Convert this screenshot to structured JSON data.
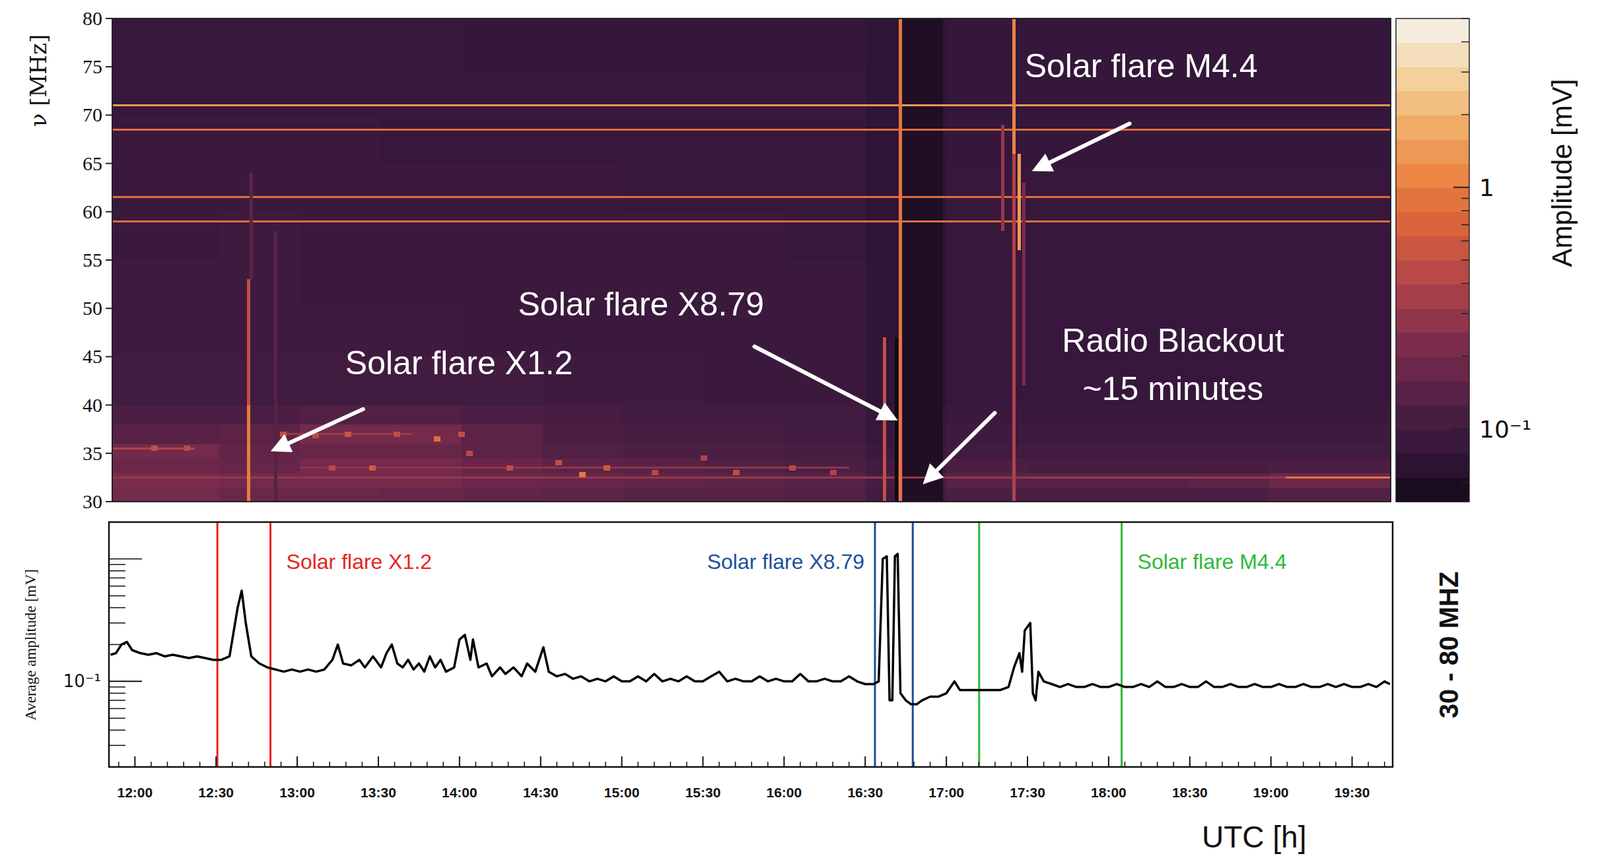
{
  "chart_data": [
    {
      "type": "heatmap",
      "y_label": "ν [MHz]",
      "xlim": [
        11.84,
        19.75
      ],
      "ylim": [
        30,
        80
      ],
      "yticks": [
        30,
        35,
        40,
        45,
        50,
        55,
        60,
        65,
        70,
        75,
        80
      ],
      "tick_labels": "y",
      "time_edges": [
        11.84,
        12.5,
        13,
        13.5,
        14,
        14.5,
        15,
        15.5,
        16,
        16.5,
        17,
        17.5,
        18,
        18.5,
        19,
        19.75
      ],
      "freq_edges": [
        30,
        31.5,
        33,
        34.5,
        36,
        38,
        40,
        45,
        50,
        55,
        60,
        65,
        70,
        75,
        80
      ],
      "cells": [
        [
          0.2,
          0.18,
          0.18,
          0.17,
          0.16,
          0.15,
          0.14,
          0.14,
          0.13,
          0.1,
          0.12,
          0.12,
          0.12,
          0.12,
          0.13
        ],
        [
          0.22,
          0.2,
          0.2,
          0.2,
          0.18,
          0.17,
          0.16,
          0.15,
          0.14,
          0.11,
          0.14,
          0.14,
          0.14,
          0.15,
          0.18
        ],
        [
          0.18,
          0.17,
          0.2,
          0.2,
          0.17,
          0.15,
          0.14,
          0.13,
          0.12,
          0.1,
          0.12,
          0.11,
          0.11,
          0.11,
          0.12
        ],
        [
          0.2,
          0.16,
          0.17,
          0.17,
          0.15,
          0.13,
          0.12,
          0.12,
          0.11,
          0.09,
          0.1,
          0.1,
          0.1,
          0.1,
          0.1
        ],
        [
          0.14,
          0.15,
          0.2,
          0.2,
          0.15,
          0.12,
          0.11,
          0.11,
          0.1,
          0.085,
          0.095,
          0.095,
          0.095,
          0.095,
          0.095
        ],
        [
          0.12,
          0.12,
          0.13,
          0.13,
          0.12,
          0.11,
          0.1,
          0.1,
          0.1,
          0.08,
          0.09,
          0.09,
          0.09,
          0.09,
          0.09
        ],
        [
          0.1,
          0.1,
          0.1,
          0.1,
          0.1,
          0.095,
          0.095,
          0.09,
          0.09,
          0.075,
          0.085,
          0.085,
          0.085,
          0.085,
          0.085
        ],
        [
          0.095,
          0.095,
          0.095,
          0.095,
          0.09,
          0.09,
          0.09,
          0.09,
          0.09,
          0.075,
          0.085,
          0.085,
          0.085,
          0.085,
          0.085
        ],
        [
          0.095,
          0.095,
          0.09,
          0.09,
          0.09,
          0.09,
          0.09,
          0.09,
          0.09,
          0.075,
          0.085,
          0.085,
          0.085,
          0.085,
          0.085
        ],
        [
          0.09,
          0.095,
          0.09,
          0.09,
          0.09,
          0.09,
          0.09,
          0.09,
          0.085,
          0.075,
          0.085,
          0.085,
          0.085,
          0.085,
          0.085
        ],
        [
          0.09,
          0.09,
          0.09,
          0.09,
          0.09,
          0.09,
          0.085,
          0.085,
          0.085,
          0.075,
          0.085,
          0.085,
          0.085,
          0.085,
          0.085
        ],
        [
          0.09,
          0.09,
          0.09,
          0.085,
          0.085,
          0.085,
          0.085,
          0.085,
          0.085,
          0.075,
          0.08,
          0.08,
          0.08,
          0.08,
          0.08
        ],
        [
          0.085,
          0.085,
          0.085,
          0.085,
          0.085,
          0.085,
          0.085,
          0.085,
          0.085,
          0.075,
          0.08,
          0.08,
          0.08,
          0.08,
          0.08
        ],
        [
          0.085,
          0.085,
          0.085,
          0.085,
          0.08,
          0.08,
          0.08,
          0.08,
          0.08,
          0.075,
          0.08,
          0.08,
          0.08,
          0.08,
          0.08
        ]
      ],
      "blackout": {
        "start": 16.73,
        "end": 16.98,
        "fmin": 30,
        "fmax": 80,
        "amplitude": 0.06
      },
      "lines": [
        {
          "freq": 71,
          "start": 11.84,
          "end": 19.75,
          "amplitude": 1.4
        },
        {
          "freq": 68.5,
          "start": 11.84,
          "end": 19.75,
          "amplitude": 0.8
        },
        {
          "freq": 61.5,
          "start": 11.84,
          "end": 19.75,
          "amplitude": 0.8
        },
        {
          "freq": 59,
          "start": 11.84,
          "end": 19.75,
          "amplitude": 0.8
        },
        {
          "freq": 32.5,
          "start": 11.84,
          "end": 19.1,
          "amplitude": 0.3
        },
        {
          "freq": 32.5,
          "start": 19.1,
          "end": 19.75,
          "amplitude": 0.9
        },
        {
          "freq": 35.5,
          "start": 11.84,
          "end": 12.35,
          "amplitude": 0.4
        },
        {
          "freq": 37,
          "start": 12.9,
          "end": 13.7,
          "amplitude": 0.3
        },
        {
          "freq": 33.5,
          "start": 13.0,
          "end": 16.4,
          "amplitude": 0.28
        }
      ],
      "spots": [
        {
          "time": 12.1,
          "freq": 35.5,
          "amplitude": 0.5
        },
        {
          "time": 12.3,
          "freq": 35.5,
          "amplitude": 0.45
        },
        {
          "time": 12.9,
          "freq": 37,
          "amplitude": 0.5
        },
        {
          "time": 13.1,
          "freq": 36.8,
          "amplitude": 0.45
        },
        {
          "time": 13.2,
          "freq": 33.5,
          "amplitude": 0.45
        },
        {
          "time": 13.3,
          "freq": 37,
          "amplitude": 0.55
        },
        {
          "time": 13.45,
          "freq": 33.5,
          "amplitude": 0.6
        },
        {
          "time": 13.6,
          "freq": 37,
          "amplitude": 0.5
        },
        {
          "time": 13.85,
          "freq": 36.5,
          "amplitude": 0.8
        },
        {
          "time": 14.0,
          "freq": 37,
          "amplitude": 0.5
        },
        {
          "time": 14.05,
          "freq": 35,
          "amplitude": 0.45
        },
        {
          "time": 14.3,
          "freq": 33.5,
          "amplitude": 0.5
        },
        {
          "time": 14.6,
          "freq": 34,
          "amplitude": 0.5
        },
        {
          "time": 14.75,
          "freq": 32.8,
          "amplitude": 0.9
        },
        {
          "time": 14.9,
          "freq": 33.5,
          "amplitude": 0.6
        },
        {
          "time": 15.2,
          "freq": 33,
          "amplitude": 0.45
        },
        {
          "time": 15.5,
          "freq": 34.5,
          "amplitude": 0.4
        },
        {
          "time": 15.7,
          "freq": 33,
          "amplitude": 0.5
        },
        {
          "time": 16.05,
          "freq": 33.5,
          "amplitude": 0.45
        },
        {
          "time": 16.3,
          "freq": 33,
          "amplitude": 0.4
        }
      ],
      "bursts": [
        {
          "time": 12.683,
          "fmin": 30,
          "fmax": 40,
          "amplitude": 1.0
        },
        {
          "time": 12.683,
          "fmin": 40,
          "fmax": 53,
          "amplitude": 0.5
        },
        {
          "time": 12.7,
          "fmin": 53,
          "fmax": 64,
          "amplitude": 0.15
        },
        {
          "time": 12.85,
          "fmin": 30,
          "fmax": 58,
          "amplitude": 0.14
        },
        {
          "time": 16.617,
          "fmin": 30,
          "fmax": 47,
          "amplitude": 0.5
        },
        {
          "time": 16.69,
          "fmin": 30,
          "fmax": 47,
          "amplitude": 0.035
        },
        {
          "time": 16.717,
          "fmin": 30,
          "fmax": 80,
          "amplitude": 0.9
        },
        {
          "time": 17.35,
          "fmin": 58,
          "fmax": 69,
          "amplitude": 0.3
        },
        {
          "time": 17.42,
          "fmin": 30,
          "fmax": 66,
          "amplitude": 0.4
        },
        {
          "time": 17.42,
          "fmin": 66,
          "fmax": 80,
          "amplitude": 1.1
        },
        {
          "time": 17.45,
          "fmin": 56,
          "fmax": 66,
          "amplitude": 1.4
        },
        {
          "time": 17.48,
          "fmin": 42,
          "fmax": 63,
          "amplitude": 0.22
        }
      ],
      "color_range": [
        0.05,
        5
      ],
      "color_ticks": [
        {
          "value": 0.1,
          "label": "10⁻¹"
        },
        1
      ],
      "color_label": "Amplitude [mV]",
      "annotations": [
        {
          "text": "Solar flare M4.4",
          "time": 17.53,
          "freq": 64.2
        },
        {
          "text": "Solar flare X1.2",
          "time": 12.82,
          "freq": 35.2
        },
        {
          "text": "Solar flare X8.79",
          "time": 16.7,
          "freq": 38.4
        },
        {
          "text": [
            "Radio Blackout",
            "~15 minutes"
          ],
          "time": 16.855,
          "freq": 31.8
        }
      ]
    },
    {
      "type": "line",
      "color": "#000000",
      "log": "y",
      "y_label": "Average amplitude [mV]",
      "x_label": "UTC [h]",
      "band_label": "30 - 80 MHZ",
      "xlim": [
        11.84,
        19.75
      ],
      "xticks": [
        {
          "value": 12,
          "label": "12:00"
        },
        {
          "value": 12.5,
          "label": "12:30"
        },
        {
          "value": 13,
          "label": "13:00"
        },
        {
          "value": 13.5,
          "label": "13:30"
        },
        {
          "value": 14,
          "label": "14:00"
        },
        {
          "value": 14.5,
          "label": "14:30"
        },
        {
          "value": 15,
          "label": "15:00"
        },
        {
          "value": 15.5,
          "label": "15:30"
        },
        {
          "value": 16,
          "label": "16:00"
        },
        {
          "value": 16.5,
          "label": "16:30"
        },
        {
          "value": 17,
          "label": "17:00"
        },
        {
          "value": 17.5,
          "label": "17:30"
        },
        {
          "value": 18,
          "label": "18:00"
        },
        {
          "value": 18.5,
          "label": "18:30"
        },
        {
          "value": 19,
          "label": "19:00"
        },
        {
          "value": 19.5,
          "label": "19:30"
        }
      ],
      "ylim": [
        0.02,
        2
      ],
      "yticks": [
        {
          "value": 0.1,
          "label": "10⁻¹"
        }
      ],
      "flares": [
        {
          "name": "Solar flare X1.2",
          "color": "#e52520",
          "start": 12.508,
          "end": 12.835
        },
        {
          "name": "Solar flare X8.79",
          "color": "#1d4f9c",
          "start": 16.56,
          "end": 16.793
        },
        {
          "name": "Solar flare M4.4",
          "color": "#2fb83a",
          "start": 17.202,
          "end": 18.08
        }
      ],
      "x": [
        11.85,
        11.883,
        11.917,
        11.95,
        11.983,
        12.033,
        12.083,
        12.133,
        12.183,
        12.233,
        12.283,
        12.333,
        12.383,
        12.433,
        12.483,
        12.533,
        12.583,
        12.633,
        12.658,
        12.683,
        12.717,
        12.767,
        12.817,
        12.867,
        12.917,
        12.967,
        13.017,
        13.067,
        13.117,
        13.167,
        13.217,
        13.25,
        13.283,
        13.333,
        13.383,
        13.417,
        13.467,
        13.517,
        13.55,
        13.583,
        13.617,
        13.65,
        13.683,
        13.717,
        13.75,
        13.783,
        13.817,
        13.85,
        13.883,
        13.917,
        13.967,
        14.0,
        14.033,
        14.067,
        14.083,
        14.117,
        14.167,
        14.2,
        14.25,
        14.283,
        14.333,
        14.383,
        14.417,
        14.467,
        14.517,
        14.55,
        14.6,
        14.65,
        14.7,
        14.75,
        14.8,
        14.85,
        14.9,
        14.95,
        15.0,
        15.05,
        15.1,
        15.15,
        15.2,
        15.25,
        15.3,
        15.35,
        15.4,
        15.45,
        15.5,
        15.55,
        15.6,
        15.65,
        15.7,
        15.75,
        15.8,
        15.85,
        15.9,
        15.95,
        16.0,
        16.05,
        16.1,
        16.15,
        16.2,
        16.25,
        16.3,
        16.35,
        16.4,
        16.45,
        16.5,
        16.55,
        16.583,
        16.608,
        16.633,
        16.65,
        16.667,
        16.683,
        16.7,
        16.717,
        16.75,
        16.783,
        16.817,
        16.85,
        16.9,
        16.95,
        17.0,
        17.05,
        17.083,
        17.133,
        17.183,
        17.233,
        17.283,
        17.333,
        17.383,
        17.417,
        17.45,
        17.467,
        17.483,
        17.517,
        17.533,
        17.55,
        17.567,
        17.6,
        17.65,
        17.7,
        17.75,
        17.8,
        17.85,
        17.9,
        17.95,
        18.0,
        18.05,
        18.1,
        18.15,
        18.2,
        18.25,
        18.3,
        18.35,
        18.4,
        18.45,
        18.5,
        18.55,
        18.6,
        18.65,
        18.7,
        18.75,
        18.8,
        18.85,
        18.9,
        18.95,
        19.0,
        19.05,
        19.1,
        19.15,
        19.2,
        19.25,
        19.3,
        19.35,
        19.4,
        19.45,
        19.5,
        19.55,
        19.6,
        19.65,
        19.7,
        19.733
      ],
      "values": [
        0.165,
        0.17,
        0.2,
        0.21,
        0.18,
        0.17,
        0.165,
        0.17,
        0.16,
        0.165,
        0.16,
        0.155,
        0.16,
        0.155,
        0.15,
        0.15,
        0.16,
        0.4,
        0.55,
        0.3,
        0.16,
        0.14,
        0.13,
        0.125,
        0.12,
        0.125,
        0.12,
        0.125,
        0.12,
        0.125,
        0.15,
        0.2,
        0.14,
        0.135,
        0.15,
        0.13,
        0.16,
        0.13,
        0.17,
        0.2,
        0.14,
        0.13,
        0.15,
        0.125,
        0.14,
        0.12,
        0.16,
        0.13,
        0.15,
        0.12,
        0.13,
        0.22,
        0.24,
        0.15,
        0.22,
        0.13,
        0.14,
        0.11,
        0.13,
        0.115,
        0.13,
        0.11,
        0.14,
        0.12,
        0.19,
        0.12,
        0.11,
        0.115,
        0.105,
        0.11,
        0.1,
        0.105,
        0.1,
        0.11,
        0.1,
        0.1,
        0.11,
        0.1,
        0.115,
        0.1,
        0.105,
        0.1,
        0.11,
        0.1,
        0.1,
        0.11,
        0.12,
        0.1,
        0.105,
        0.1,
        0.1,
        0.11,
        0.1,
        0.105,
        0.1,
        0.1,
        0.115,
        0.1,
        0.1,
        0.105,
        0.1,
        0.1,
        0.11,
        0.1,
        0.095,
        0.095,
        0.1,
        1.0,
        1.05,
        0.07,
        0.07,
        1.05,
        1.1,
        0.08,
        0.07,
        0.065,
        0.065,
        0.07,
        0.075,
        0.075,
        0.08,
        0.1,
        0.085,
        0.085,
        0.085,
        0.085,
        0.085,
        0.085,
        0.09,
        0.13,
        0.17,
        0.12,
        0.26,
        0.3,
        0.08,
        0.07,
        0.12,
        0.1,
        0.095,
        0.09,
        0.095,
        0.09,
        0.09,
        0.095,
        0.09,
        0.09,
        0.095,
        0.09,
        0.09,
        0.095,
        0.09,
        0.1,
        0.09,
        0.09,
        0.095,
        0.09,
        0.09,
        0.1,
        0.09,
        0.09,
        0.095,
        0.09,
        0.09,
        0.095,
        0.09,
        0.09,
        0.095,
        0.09,
        0.09,
        0.095,
        0.09,
        0.09,
        0.095,
        0.09,
        0.095,
        0.09,
        0.09,
        0.095,
        0.09,
        0.1,
        0.095
      ]
    }
  ]
}
